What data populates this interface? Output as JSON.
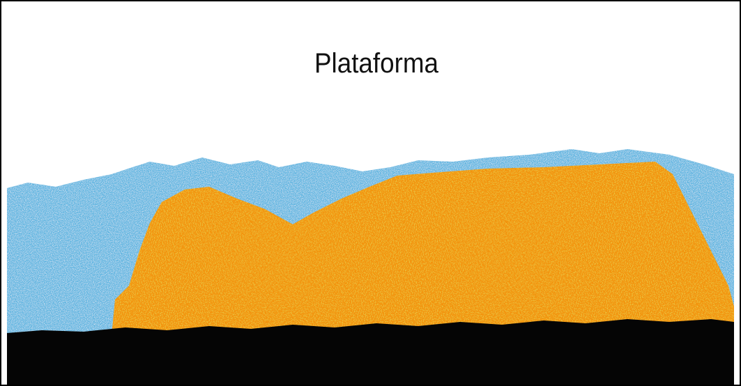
{
  "label": "Plataforma"
}
